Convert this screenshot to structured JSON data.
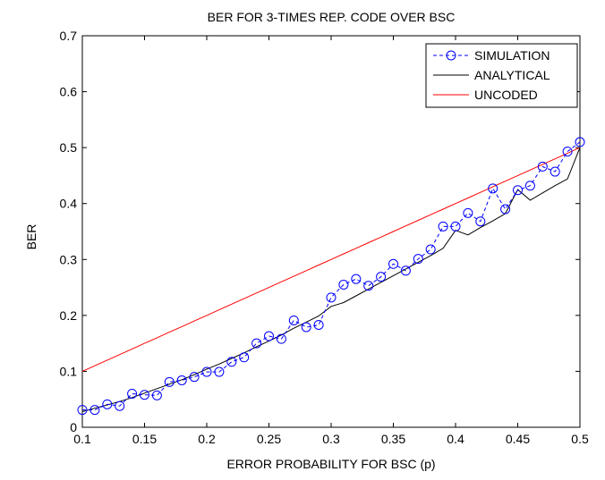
{
  "chart_data": {
    "type": "line",
    "title": "BER FOR 3-TIMES REP. CODE OVER BSC",
    "xlabel": "ERROR PROBABILITY FOR BSC (p)",
    "ylabel": "BER",
    "xlim": [
      0.1,
      0.5
    ],
    "ylim": [
      0,
      0.7
    ],
    "xticks": [
      0.1,
      0.15,
      0.2,
      0.25,
      0.3,
      0.35,
      0.4,
      0.45,
      0.5
    ],
    "xtick_labels": [
      "0.1",
      "0.15",
      "0.2",
      "0.25",
      "0.3",
      "0.35",
      "0.4",
      "0.45",
      "0.5"
    ],
    "yticks": [
      0,
      0.1,
      0.2,
      0.3,
      0.4,
      0.5,
      0.6,
      0.7
    ],
    "ytick_labels": [
      "0",
      "0.1",
      "0.2",
      "0.3",
      "0.4",
      "0.5",
      "0.6",
      "0.7"
    ],
    "grid": false,
    "legend_position": "top-right",
    "x": [
      0.1,
      0.11,
      0.12,
      0.13,
      0.14,
      0.15,
      0.16,
      0.17,
      0.18,
      0.19,
      0.2,
      0.21,
      0.22,
      0.23,
      0.24,
      0.25,
      0.26,
      0.27,
      0.28,
      0.29,
      0.3,
      0.31,
      0.32,
      0.33,
      0.34,
      0.35,
      0.36,
      0.37,
      0.38,
      0.39,
      0.4,
      0.41,
      0.42,
      0.43,
      0.44,
      0.45,
      0.46,
      0.47,
      0.48,
      0.49,
      0.5
    ],
    "series": [
      {
        "name": "SIMULATION",
        "style": "dashed-circle",
        "color": "#0000ff",
        "values": [
          0.031,
          0.031,
          0.041,
          0.038,
          0.06,
          0.058,
          0.057,
          0.081,
          0.084,
          0.09,
          0.099,
          0.099,
          0.117,
          0.125,
          0.15,
          0.163,
          0.158,
          0.191,
          0.179,
          0.183,
          0.232,
          0.255,
          0.265,
          0.253,
          0.269,
          0.292,
          0.28,
          0.301,
          0.318,
          0.359,
          0.359,
          0.383,
          0.368,
          0.427,
          0.39,
          0.424,
          0.432,
          0.466,
          0.457,
          0.493,
          0.51
        ]
      },
      {
        "name": "ANALYTICAL",
        "style": "solid",
        "color": "#000000",
        "values": [
          0.028,
          0.034,
          0.04,
          0.046,
          0.053,
          0.061,
          0.069,
          0.077,
          0.085,
          0.094,
          0.104,
          0.113,
          0.123,
          0.133,
          0.144,
          0.154,
          0.165,
          0.177,
          0.188,
          0.199,
          0.216,
          0.223,
          0.235,
          0.247,
          0.259,
          0.271,
          0.283,
          0.295,
          0.307,
          0.32,
          0.352,
          0.344,
          0.357,
          0.369,
          0.382,
          0.425,
          0.406,
          0.419,
          0.432,
          0.444,
          0.5
        ]
      },
      {
        "name": "UNCODED",
        "style": "solid",
        "color": "#ff0000",
        "values": [
          0.1,
          0.11,
          0.12,
          0.13,
          0.14,
          0.15,
          0.16,
          0.17,
          0.18,
          0.19,
          0.2,
          0.21,
          0.22,
          0.23,
          0.24,
          0.25,
          0.26,
          0.27,
          0.28,
          0.29,
          0.3,
          0.31,
          0.32,
          0.33,
          0.34,
          0.35,
          0.36,
          0.37,
          0.38,
          0.39,
          0.4,
          0.41,
          0.42,
          0.43,
          0.44,
          0.45,
          0.46,
          0.47,
          0.48,
          0.49,
          0.5
        ]
      }
    ]
  }
}
